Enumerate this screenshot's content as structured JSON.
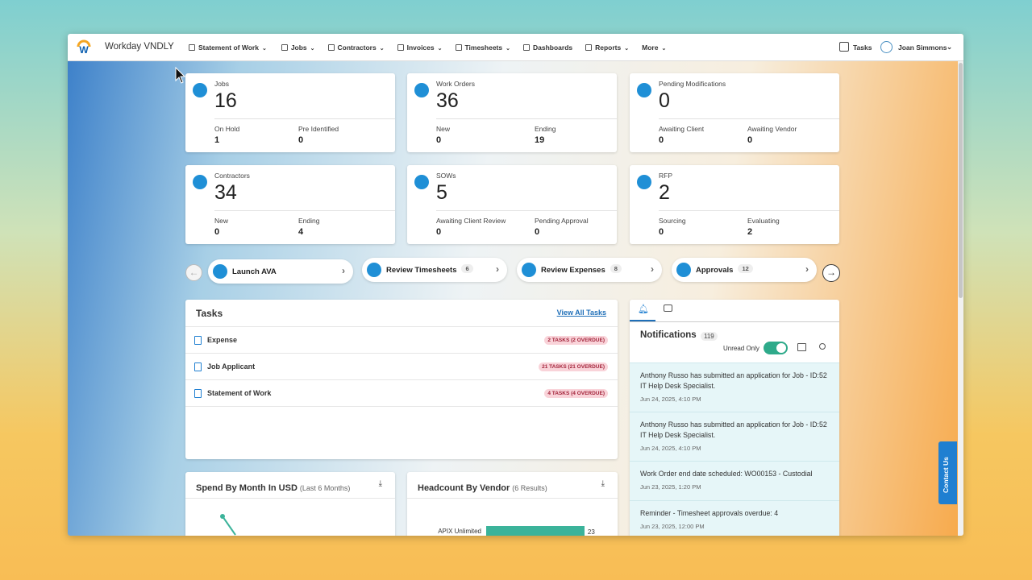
{
  "nav": {
    "brand": "Workday VNDLY",
    "items": [
      "Statement of Work",
      "Jobs",
      "Contractors",
      "Invoices",
      "Timesheets",
      "Dashboards",
      "Reports",
      "More"
    ],
    "tasks": "Tasks",
    "user": "Joan Simmons"
  },
  "cards": [
    {
      "title": "Jobs",
      "value": 16,
      "sub": [
        {
          "label": "On Hold",
          "value": 1
        },
        {
          "label": "Pre Identified",
          "value": 0
        }
      ]
    },
    {
      "title": "Work Orders",
      "value": 36,
      "sub": [
        {
          "label": "New",
          "value": 0
        },
        {
          "label": "Ending",
          "value": 19
        }
      ]
    },
    {
      "title": "Pending Modifications",
      "value": 0,
      "sub": [
        {
          "label": "Awaiting Client",
          "value": 0
        },
        {
          "label": "Awaiting Vendor",
          "value": 0
        }
      ]
    },
    {
      "title": "Contractors",
      "value": 34,
      "sub": [
        {
          "label": "New",
          "value": 0
        },
        {
          "label": "Ending",
          "value": 4
        }
      ]
    },
    {
      "title": "SOWs",
      "value": 5,
      "sub": [
        {
          "label": "Awaiting Client Review",
          "value": 0
        },
        {
          "label": "Pending Approval",
          "value": 0
        }
      ]
    },
    {
      "title": "RFP",
      "value": 2,
      "sub": [
        {
          "label": "Sourcing",
          "value": 0
        },
        {
          "label": "Evaluating",
          "value": 2
        }
      ]
    }
  ],
  "actions": [
    {
      "label": "Launch AVA"
    },
    {
      "label": "Review Timesheets",
      "count": 6
    },
    {
      "label": "Review Expenses",
      "count": 8
    },
    {
      "label": "Approvals",
      "count": 12
    }
  ],
  "tasks": {
    "title": "Tasks",
    "link": "View All Tasks",
    "rows": [
      {
        "label": "Expense",
        "badge": "2 TASKS (2 OVERDUE)"
      },
      {
        "label": "Job Applicant",
        "badge": "21 TASKS (21 OVERDUE)"
      },
      {
        "label": "Statement of Work",
        "badge": "4 TASKS (4 OVERDUE)"
      }
    ]
  },
  "notifications": {
    "title": "Notifications",
    "count": 119,
    "toggle": "Unread Only",
    "items": [
      {
        "text": "Anthony Russo has submitted an application for Job - ID:52 IT Help Desk Specialist.",
        "time": "Jun 24, 2025, 4:10 PM"
      },
      {
        "text": "Anthony Russo has submitted an application for Job - ID:52 IT Help Desk Specialist.",
        "time": "Jun 24, 2025, 4:10 PM"
      },
      {
        "text": "Work Order end date scheduled: WO00153 - Custodial",
        "time": "Jun 23, 2025, 1:20 PM"
      },
      {
        "text": "Reminder - Timesheet approvals overdue: 4",
        "time": "Jun 23, 2025, 12:00 PM"
      }
    ]
  },
  "spend": {
    "title": "Spend By Month In USD",
    "subtitle": "(Last 6 Months)"
  },
  "headcount": {
    "title": "Headcount By Vendor",
    "subtitle": "(6 Results)",
    "categories": [
      "APIX Unlimited"
    ],
    "values": [
      23
    ]
  },
  "contact": "Contact Us"
}
